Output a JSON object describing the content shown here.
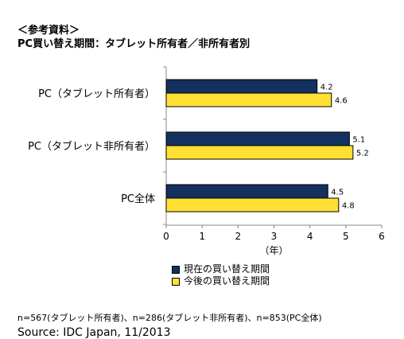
{
  "header": {
    "subtitle": "＜参考資料＞",
    "title": "PC買い替え期間：タブレット所有者／非所有者別"
  },
  "chart_data": {
    "type": "bar",
    "orientation": "horizontal",
    "categories": [
      "PC（タブレット所有者）",
      "PC（タブレット非所有者）",
      "PC全体"
    ],
    "series": [
      {
        "name": "現在の買い替え期間",
        "values": [
          4.2,
          5.1,
          4.5
        ],
        "color": "#14305e"
      },
      {
        "name": "今後の買い替え期間",
        "values": [
          4.6,
          5.2,
          4.8
        ],
        "color": "#ffe033"
      }
    ],
    "xlim": [
      0,
      6
    ],
    "xticks": [
      "0",
      "1",
      "2",
      "3",
      "4",
      "5",
      "6"
    ],
    "xlabel": "（年）",
    "grid": false,
    "legend_position": "bottom"
  },
  "footnote": "n=567(タブレット所有者)、n=286(タブレット非所有者)、n=853(PC全体)",
  "source": "Source: IDC Japan, 11/2013"
}
